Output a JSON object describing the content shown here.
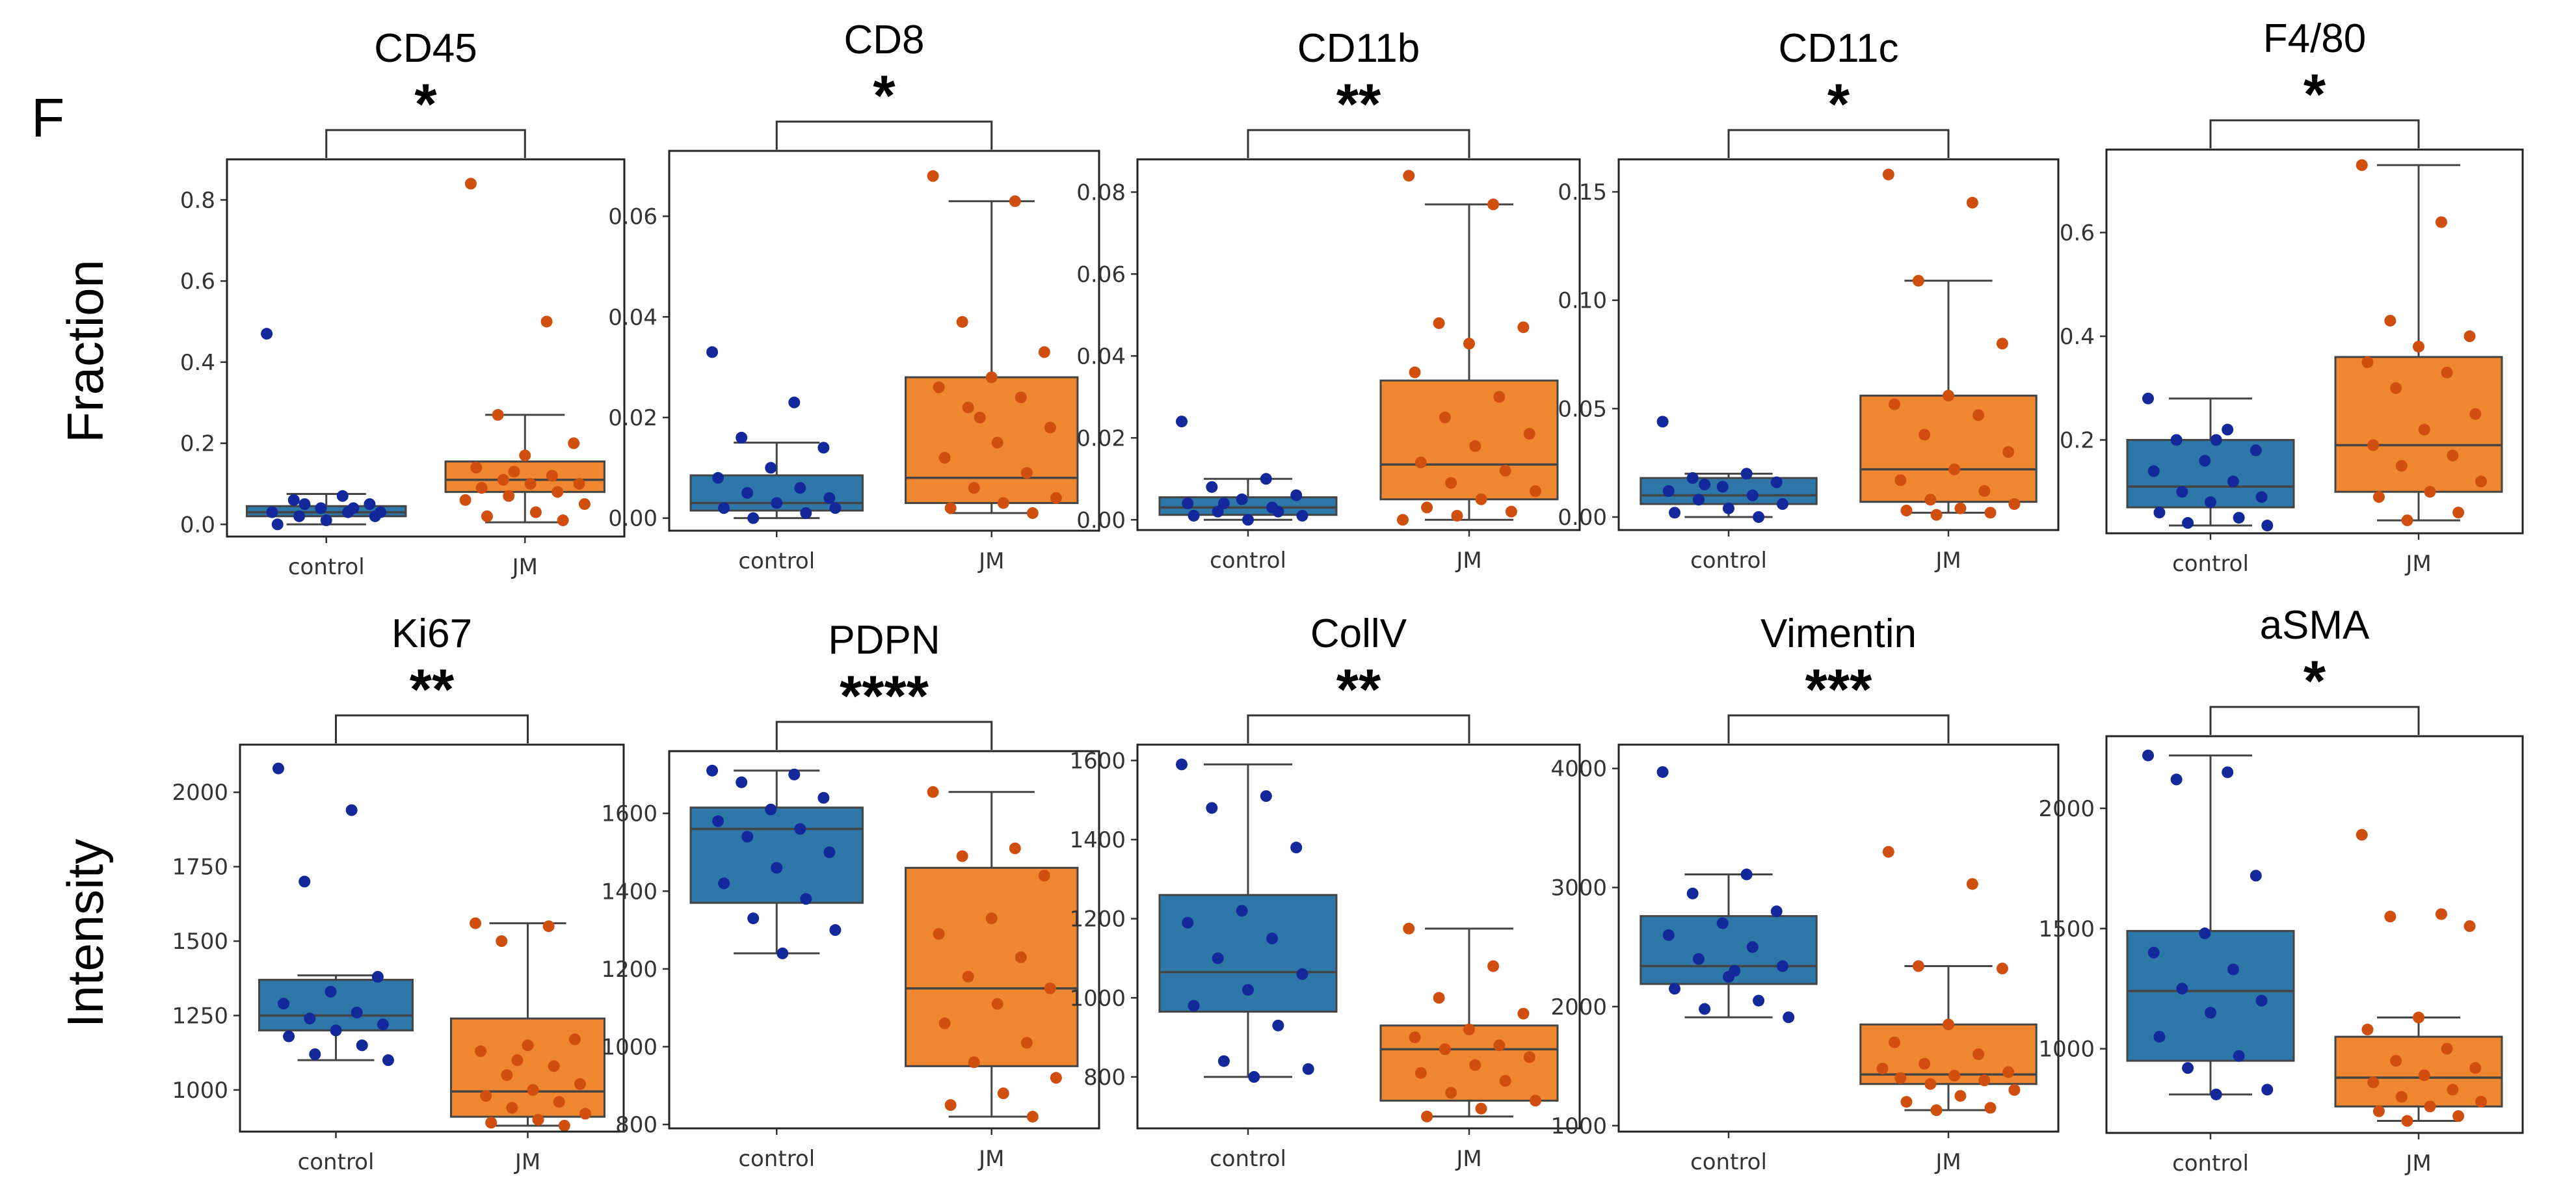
{
  "figure": {
    "panel_letter": "F",
    "row_labels": [
      "Fraction",
      "Intensity"
    ],
    "colors": {
      "control_box": "#2e77a9",
      "jm_box": "#ef8630",
      "control_point": "#13289a",
      "jm_point": "#d04f0f",
      "line": "#444444"
    }
  },
  "chart_data": [
    {
      "type": "box",
      "title": "CD45",
      "significance": "*",
      "ylabel": "Fraction",
      "categories": [
        "control",
        "JM"
      ],
      "ylim": [
        -0.03,
        0.9
      ],
      "yticks": [
        0.0,
        0.2,
        0.4,
        0.6,
        0.8
      ],
      "ytick_labels": [
        "0.0",
        "0.2",
        "0.4",
        "0.6",
        "0.8"
      ],
      "boxes": [
        {
          "q1": 0.02,
          "median": 0.03,
          "q3": 0.045,
          "whislo": 0.0,
          "whishi": 0.075
        },
        {
          "q1": 0.08,
          "median": 0.11,
          "q3": 0.155,
          "whislo": 0.005,
          "whishi": 0.27
        }
      ],
      "points": [
        [
          0.47,
          0.07,
          0.06,
          0.05,
          0.04,
          0.03,
          0.03,
          0.02,
          0.02,
          0.01,
          0.0,
          0.04,
          0.05,
          0.03
        ],
        [
          0.84,
          0.5,
          0.27,
          0.2,
          0.17,
          0.14,
          0.12,
          0.11,
          0.1,
          0.1,
          0.09,
          0.08,
          0.07,
          0.05,
          0.03,
          0.02,
          0.01,
          0.13,
          0.06
        ]
      ]
    },
    {
      "type": "box",
      "title": "CD8",
      "significance": "*",
      "ylabel": "Fraction",
      "categories": [
        "control",
        "JM"
      ],
      "ylim": [
        -0.0025,
        0.073
      ],
      "yticks": [
        0.0,
        0.02,
        0.04,
        0.06
      ],
      "ytick_labels": [
        "0.00",
        "0.02",
        "0.04",
        "0.06"
      ],
      "boxes": [
        {
          "q1": 0.0015,
          "median": 0.003,
          "q3": 0.0085,
          "whislo": 0.0,
          "whishi": 0.015
        },
        {
          "q1": 0.003,
          "median": 0.008,
          "q3": 0.028,
          "whislo": 0.001,
          "whishi": 0.063
        }
      ],
      "points": [
        [
          0.033,
          0.023,
          0.016,
          0.014,
          0.01,
          0.008,
          0.006,
          0.005,
          0.004,
          0.003,
          0.002,
          0.001,
          0.0,
          0.002
        ],
        [
          0.068,
          0.063,
          0.039,
          0.033,
          0.028,
          0.026,
          0.024,
          0.022,
          0.018,
          0.015,
          0.012,
          0.009,
          0.006,
          0.004,
          0.003,
          0.002,
          0.001,
          0.02
        ]
      ]
    },
    {
      "type": "box",
      "title": "CD11b",
      "significance": "**",
      "ylabel": "",
      "categories": [
        "control",
        "JM"
      ],
      "ylim": [
        -0.0025,
        0.088
      ],
      "yticks": [
        0.0,
        0.02,
        0.04,
        0.06,
        0.08
      ],
      "ytick_labels": [
        "0.00",
        "0.02",
        "0.04",
        "0.06",
        "0.08"
      ],
      "boxes": [
        {
          "q1": 0.0012,
          "median": 0.003,
          "q3": 0.0055,
          "whislo": 0.0,
          "whishi": 0.01
        },
        {
          "q1": 0.005,
          "median": 0.0135,
          "q3": 0.034,
          "whislo": 0.0,
          "whishi": 0.077
        }
      ],
      "points": [
        [
          0.024,
          0.01,
          0.008,
          0.006,
          0.005,
          0.004,
          0.003,
          0.002,
          0.001,
          0.0,
          0.001,
          0.002,
          0.004
        ],
        [
          0.084,
          0.077,
          0.048,
          0.047,
          0.043,
          0.036,
          0.03,
          0.025,
          0.021,
          0.018,
          0.014,
          0.012,
          0.009,
          0.007,
          0.005,
          0.003,
          0.002,
          0.001,
          0.0
        ]
      ]
    },
    {
      "type": "box",
      "title": "CD11c",
      "significance": "*",
      "ylabel": "",
      "categories": [
        "control",
        "JM"
      ],
      "ylim": [
        -0.006,
        0.165
      ],
      "yticks": [
        0.0,
        0.05,
        0.1,
        0.15
      ],
      "ytick_labels": [
        "0.00",
        "0.05",
        "0.10",
        "0.15"
      ],
      "boxes": [
        {
          "q1": 0.006,
          "median": 0.01,
          "q3": 0.018,
          "whislo": 0.0,
          "whishi": 0.02
        },
        {
          "q1": 0.007,
          "median": 0.022,
          "q3": 0.056,
          "whislo": 0.002,
          "whishi": 0.109
        }
      ],
      "points": [
        [
          0.044,
          0.02,
          0.018,
          0.016,
          0.014,
          0.012,
          0.01,
          0.008,
          0.006,
          0.004,
          0.002,
          0.0,
          0.015
        ],
        [
          0.158,
          0.145,
          0.109,
          0.08,
          0.056,
          0.052,
          0.047,
          0.038,
          0.03,
          0.022,
          0.017,
          0.012,
          0.008,
          0.006,
          0.004,
          0.003,
          0.002,
          0.001
        ]
      ]
    },
    {
      "type": "box",
      "title": "F4/80",
      "significance": "*",
      "ylabel": "",
      "categories": [
        "control",
        "JM"
      ],
      "ylim": [
        0.02,
        0.76
      ],
      "yticks": [
        0.2,
        0.4,
        0.6
      ],
      "ytick_labels": [
        "0.2",
        "0.4",
        "0.6"
      ],
      "boxes": [
        {
          "q1": 0.07,
          "median": 0.11,
          "q3": 0.2,
          "whislo": 0.035,
          "whishi": 0.28
        },
        {
          "q1": 0.1,
          "median": 0.19,
          "q3": 0.36,
          "whislo": 0.045,
          "whishi": 0.73
        }
      ],
      "points": [
        [
          0.28,
          0.22,
          0.2,
          0.18,
          0.16,
          0.14,
          0.12,
          0.1,
          0.09,
          0.08,
          0.06,
          0.05,
          0.04,
          0.035,
          0.2
        ],
        [
          0.73,
          0.62,
          0.43,
          0.4,
          0.38,
          0.35,
          0.33,
          0.3,
          0.25,
          0.22,
          0.19,
          0.17,
          0.15,
          0.12,
          0.1,
          0.09,
          0.06,
          0.045
        ]
      ]
    },
    {
      "type": "box",
      "title": "Ki67",
      "significance": "**",
      "ylabel": "Intensity",
      "categories": [
        "control",
        "JM"
      ],
      "ylim": [
        860,
        2160
      ],
      "yticks": [
        1000,
        1250,
        1500,
        1750,
        2000
      ],
      "ytick_labels": [
        "1000",
        "1250",
        "1500",
        "1750",
        "2000"
      ],
      "boxes": [
        {
          "q1": 1200,
          "median": 1250,
          "q3": 1370,
          "whislo": 1100,
          "whishi": 1385
        },
        {
          "q1": 910,
          "median": 995,
          "q3": 1240,
          "whislo": 880,
          "whishi": 1560
        }
      ],
      "points": [
        [
          2080,
          1940,
          1700,
          1380,
          1330,
          1290,
          1260,
          1240,
          1220,
          1200,
          1180,
          1150,
          1120,
          1100
        ],
        [
          1560,
          1550,
          1500,
          1170,
          1150,
          1130,
          1080,
          1050,
          1020,
          1000,
          980,
          960,
          940,
          920,
          900,
          890,
          880,
          1100
        ]
      ]
    },
    {
      "type": "box",
      "title": "PDPN",
      "significance": "****",
      "ylabel": "",
      "categories": [
        "control",
        "JM"
      ],
      "ylim": [
        790,
        1760
      ],
      "yticks": [
        800,
        1000,
        1200,
        1400,
        1600
      ],
      "ytick_labels": [
        "800",
        "1000",
        "1200",
        "1400",
        "1600"
      ],
      "boxes": [
        {
          "q1": 1370,
          "median": 1560,
          "q3": 1615,
          "whislo": 1240,
          "whishi": 1710
        },
        {
          "q1": 950,
          "median": 1150,
          "q3": 1460,
          "whislo": 820,
          "whishi": 1655
        }
      ],
      "points": [
        [
          1710,
          1700,
          1680,
          1640,
          1610,
          1580,
          1560,
          1540,
          1500,
          1460,
          1420,
          1380,
          1330,
          1300,
          1240
        ],
        [
          1655,
          1510,
          1490,
          1440,
          1330,
          1290,
          1230,
          1180,
          1150,
          1110,
          1060,
          1010,
          960,
          920,
          880,
          850,
          820
        ]
      ]
    },
    {
      "type": "box",
      "title": "CollV",
      "significance": "**",
      "ylabel": "",
      "categories": [
        "control",
        "JM"
      ],
      "ylim": [
        670,
        1640
      ],
      "yticks": [
        800,
        1000,
        1200,
        1400,
        1600
      ],
      "ytick_labels": [
        "800",
        "1000",
        "1200",
        "1400",
        "1600"
      ],
      "boxes": [
        {
          "q1": 965,
          "median": 1065,
          "q3": 1260,
          "whislo": 800,
          "whishi": 1590
        },
        {
          "q1": 740,
          "median": 870,
          "q3": 930,
          "whislo": 700,
          "whishi": 1175
        }
      ],
      "points": [
        [
          1590,
          1510,
          1480,
          1380,
          1220,
          1190,
          1150,
          1100,
          1060,
          1020,
          980,
          930,
          840,
          820,
          800
        ],
        [
          1175,
          1080,
          1000,
          960,
          920,
          900,
          880,
          870,
          850,
          830,
          810,
          790,
          760,
          740,
          720,
          700
        ]
      ]
    },
    {
      "type": "box",
      "title": "Vimentin",
      "significance": "***",
      "ylabel": "",
      "categories": [
        "control",
        "JM"
      ],
      "ylim": [
        950,
        4200
      ],
      "yticks": [
        1000,
        2000,
        3000,
        4000
      ],
      "ytick_labels": [
        "1000",
        "2000",
        "3000",
        "4000"
      ],
      "boxes": [
        {
          "q1": 2190,
          "median": 2340,
          "q3": 2760,
          "whislo": 1910,
          "whishi": 3110
        },
        {
          "q1": 1350,
          "median": 1430,
          "q3": 1850,
          "whislo": 1130,
          "whishi": 2340
        }
      ],
      "points": [
        [
          3970,
          3110,
          2950,
          2800,
          2700,
          2600,
          2500,
          2400,
          2340,
          2250,
          2150,
          2050,
          1980,
          1910,
          2300
        ],
        [
          3300,
          3030,
          2340,
          2320,
          1850,
          1700,
          1600,
          1520,
          1450,
          1420,
          1400,
          1380,
          1350,
          1300,
          1250,
          1200,
          1150,
          1130,
          1480
        ]
      ]
    },
    {
      "type": "box",
      "title": "aSMA",
      "significance": "*",
      "ylabel": "",
      "categories": [
        "control",
        "JM"
      ],
      "ylim": [
        650,
        2300
      ],
      "yticks": [
        1000,
        1500,
        2000
      ],
      "ytick_labels": [
        "1000",
        "1500",
        "2000"
      ],
      "boxes": [
        {
          "q1": 950,
          "median": 1240,
          "q3": 1490,
          "whislo": 810,
          "whishi": 2220
        },
        {
          "q1": 760,
          "median": 880,
          "q3": 1050,
          "whislo": 700,
          "whishi": 1130
        }
      ],
      "points": [
        [
          2220,
          2150,
          2120,
          1720,
          1480,
          1400,
          1330,
          1250,
          1200,
          1150,
          1050,
          970,
          920,
          830,
          810
        ],
        [
          1890,
          1560,
          1550,
          1510,
          1130,
          1080,
          1000,
          950,
          920,
          890,
          860,
          830,
          800,
          780,
          760,
          740,
          720,
          700
        ]
      ]
    }
  ]
}
